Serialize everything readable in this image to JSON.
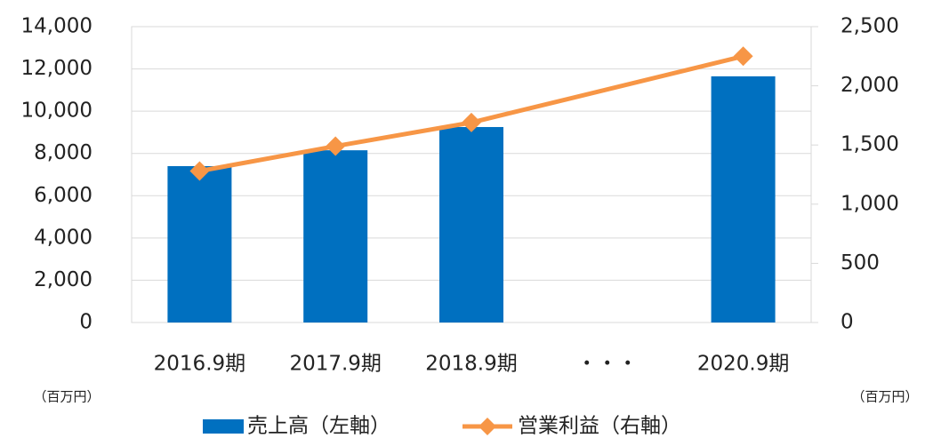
{
  "chart_data": {
    "type": "bar-line",
    "categories": [
      "2016.9期",
      "2017.9期",
      "2018.9期",
      "・・・",
      "2020.9期"
    ],
    "series": [
      {
        "name": "売上高（左軸）",
        "color": "#0070c0",
        "type": "bar",
        "values": [
          7400,
          8150,
          9250,
          null,
          11650
        ]
      },
      {
        "name": "営業利益（右軸）",
        "color": "#f79646",
        "type": "line",
        "axis": "y2",
        "values": [
          1280,
          1490,
          1690,
          null,
          2250
        ]
      }
    ],
    "ylim": [
      0,
      14000
    ],
    "yticks": [
      0,
      {
        "value": 2000,
        "label": "2,000"
      },
      {
        "value": 4000,
        "label": "4,000"
      },
      {
        "value": 6000,
        "label": "6,000"
      },
      {
        "value": 8000,
        "label": "8,000"
      },
      {
        "value": 10000,
        "label": "10,000"
      },
      {
        "value": 12000,
        "label": "12,000"
      },
      {
        "value": 14000,
        "label": "14,000"
      }
    ],
    "y2lim": [
      0,
      2500
    ],
    "y2ticks": [
      0,
      500,
      {
        "value": 1000,
        "label": "1,000"
      },
      {
        "value": 1500,
        "label": "1,500"
      },
      {
        "value": 2000,
        "label": "2,000"
      },
      {
        "value": 2500,
        "label": "2,500"
      }
    ],
    "y_unit": "（百万円）",
    "y2_unit": "（百万円）",
    "grid": true,
    "legend": "bottom"
  }
}
